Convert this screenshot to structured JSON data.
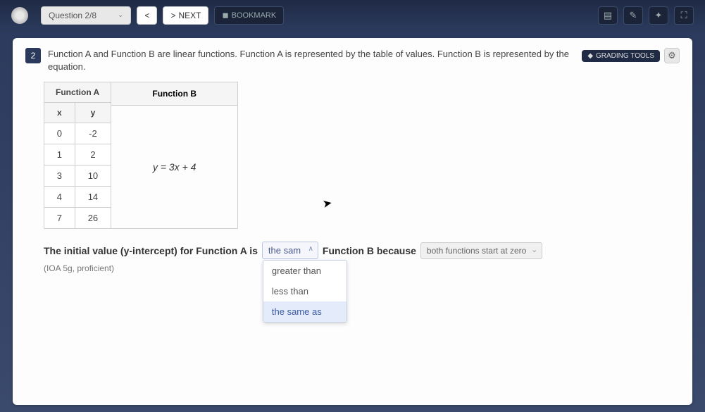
{
  "topbar": {
    "question_selector": "Question 2/8",
    "prev_symbol": "<",
    "next_label": "NEXT",
    "bookmark_label": "BOOKMARK",
    "icons": [
      "page-icon",
      "highlighter-icon",
      "eraser-icon",
      "fullscreen-icon"
    ]
  },
  "question": {
    "number": "2",
    "text": "Function A and Function B are linear functions. Function A is represented by the table of values. Function B is represented by the equation.",
    "tool_label": "GRADING TOOLS"
  },
  "functionA": {
    "title": "Function A",
    "headers": [
      "x",
      "y"
    ],
    "rows": [
      [
        "0",
        "-2"
      ],
      [
        "1",
        "2"
      ],
      [
        "3",
        "10"
      ],
      [
        "4",
        "14"
      ],
      [
        "7",
        "26"
      ]
    ]
  },
  "functionB": {
    "title": "Function B",
    "equation": "y = 3x + 4"
  },
  "sentence": {
    "part1": "The initial value  (y-intercept) for Function A is",
    "dd1_selected": "the sam",
    "dd1_options": [
      "greater than",
      "less than",
      "the same as"
    ],
    "part2": "Function B because",
    "dd2_selected": "both functions start at zero"
  },
  "subnote": "(IOA 5g, proficient)"
}
